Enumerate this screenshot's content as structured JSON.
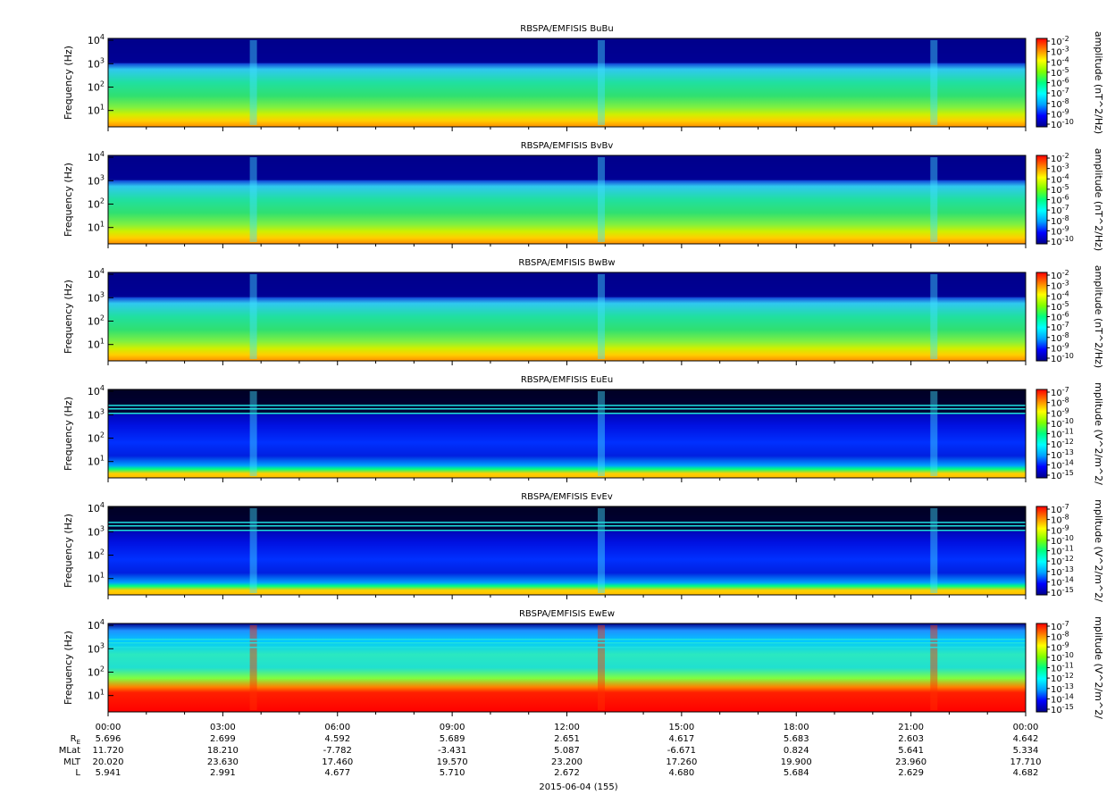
{
  "chart_data": {
    "type": "heatmap",
    "plot_type_note": "stacked spectrograms",
    "date_label": "2015-06-04 (155)",
    "x_axis": {
      "ticks": [
        "00:00",
        "03:00",
        "06:00",
        "09:00",
        "12:00",
        "15:00",
        "18:00",
        "21:00",
        "00:00"
      ],
      "range_hours": [
        0,
        24
      ]
    },
    "ephemeris": {
      "rows": [
        {
          "label": "R_E",
          "display_label": "R",
          "subscript": "E",
          "values": [
            "5.696",
            "2.699",
            "4.592",
            "5.689",
            "2.651",
            "4.617",
            "5.683",
            "2.603",
            "4.642"
          ]
        },
        {
          "label": "MLat",
          "display_label": "MLat",
          "subscript": "",
          "values": [
            "11.720",
            "18.210",
            "-7.782",
            "-3.431",
            "5.087",
            "-6.671",
            "0.824",
            "5.641",
            "5.334"
          ]
        },
        {
          "label": "MLT",
          "display_label": "MLT",
          "subscript": "",
          "values": [
            "20.020",
            "23.630",
            "17.460",
            "19.570",
            "23.200",
            "17.260",
            "19.900",
            "23.960",
            "17.710"
          ]
        },
        {
          "label": "L",
          "display_label": "L",
          "subscript": "",
          "values": [
            "5.941",
            "2.991",
            "4.677",
            "5.710",
            "2.672",
            "4.680",
            "5.684",
            "2.629",
            "4.682"
          ]
        }
      ]
    },
    "panels": [
      {
        "title": "RBSPA/EMFISIS  BuBu",
        "ylabel": "Frequency (Hz)",
        "scale": "log",
        "ylim": [
          2,
          12000
        ],
        "y_ticks": [
          {
            "b": "10",
            "e": "4",
            "v": 10000
          },
          {
            "b": "10",
            "e": "3",
            "v": 1000
          },
          {
            "b": "10",
            "e": "2",
            "v": 100
          },
          {
            "b": "10",
            "e": "1",
            "v": 10
          }
        ],
        "colorbar": {
          "label": "amplitude (nT^2/Hz)",
          "exponents": [
            "-2",
            "-3",
            "-4",
            "-5",
            "-6",
            "-7",
            "-8",
            "-9",
            "-10"
          ]
        }
      },
      {
        "title": "RBSPA/EMFISIS  BvBv",
        "ylabel": "Frequency (Hz)",
        "scale": "log",
        "ylim": [
          2,
          12000
        ],
        "y_ticks": [
          {
            "b": "10",
            "e": "4",
            "v": 10000
          },
          {
            "b": "10",
            "e": "3",
            "v": 1000
          },
          {
            "b": "10",
            "e": "2",
            "v": 100
          },
          {
            "b": "10",
            "e": "1",
            "v": 10
          }
        ],
        "colorbar": {
          "label": "amplitude (nT^2/Hz)",
          "exponents": [
            "-2",
            "-3",
            "-4",
            "-5",
            "-6",
            "-7",
            "-8",
            "-9",
            "-10"
          ]
        }
      },
      {
        "title": "RBSPA/EMFISIS  BwBw",
        "ylabel": "Frequency (Hz)",
        "scale": "log",
        "ylim": [
          2,
          12000
        ],
        "y_ticks": [
          {
            "b": "10",
            "e": "4",
            "v": 10000
          },
          {
            "b": "10",
            "e": "3",
            "v": 1000
          },
          {
            "b": "10",
            "e": "2",
            "v": 100
          },
          {
            "b": "10",
            "e": "1",
            "v": 10
          }
        ],
        "colorbar": {
          "label": "amplitude (nT^2/Hz)",
          "exponents": [
            "-2",
            "-3",
            "-4",
            "-5",
            "-6",
            "-7",
            "-8",
            "-9",
            "-10"
          ]
        }
      },
      {
        "title": "RBSPA/EMFISIS  EuEu",
        "ylabel": "Frequency (Hz)",
        "scale": "log",
        "ylim": [
          2,
          12000
        ],
        "y_ticks": [
          {
            "b": "10",
            "e": "4",
            "v": 10000
          },
          {
            "b": "10",
            "e": "3",
            "v": 1000
          },
          {
            "b": "10",
            "e": "2",
            "v": 100
          },
          {
            "b": "10",
            "e": "1",
            "v": 10
          }
        ],
        "colorbar": {
          "label": "mplitude (V^2/m^2/",
          "exponents": [
            "-7",
            "-8",
            "-9",
            "-10",
            "-11",
            "-12",
            "-13",
            "-14",
            "-15"
          ]
        }
      },
      {
        "title": "RBSPA/EMFISIS  EvEv",
        "ylabel": "Frequency (Hz)",
        "scale": "log",
        "ylim": [
          2,
          12000
        ],
        "y_ticks": [
          {
            "b": "10",
            "e": "4",
            "v": 10000
          },
          {
            "b": "10",
            "e": "3",
            "v": 1000
          },
          {
            "b": "10",
            "e": "2",
            "v": 100
          },
          {
            "b": "10",
            "e": "1",
            "v": 10
          }
        ],
        "colorbar": {
          "label": "mplitude (V^2/m^2/",
          "exponents": [
            "-7",
            "-8",
            "-9",
            "-10",
            "-11",
            "-12",
            "-13",
            "-14",
            "-15"
          ]
        }
      },
      {
        "title": "RBSPA/EMFISIS  EwEw",
        "ylabel": "Frequency (Hz)",
        "scale": "log",
        "ylim": [
          2,
          12000
        ],
        "y_ticks": [
          {
            "b": "10",
            "e": "4",
            "v": 10000
          },
          {
            "b": "10",
            "e": "3",
            "v": 1000
          },
          {
            "b": "10",
            "e": "2",
            "v": 100
          },
          {
            "b": "10",
            "e": "1",
            "v": 10
          }
        ],
        "colorbar": {
          "label": "mplitude (V^2/m^2/",
          "exponents": [
            "-7",
            "-8",
            "-9",
            "-10",
            "-11",
            "-12",
            "-13",
            "-14",
            "-15"
          ]
        }
      }
    ],
    "colormap": [
      "#00008b",
      "#0000ff",
      "#00a0ff",
      "#00ffff",
      "#00ff80",
      "#80ff00",
      "#ffff00",
      "#ff8000",
      "#ff0000"
    ]
  }
}
